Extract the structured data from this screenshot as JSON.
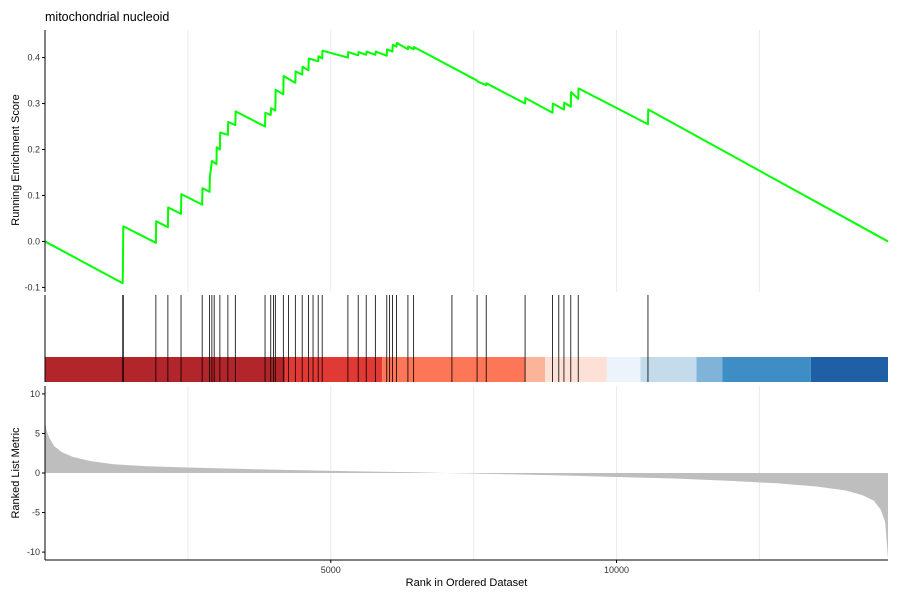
{
  "chart_data": {
    "type": "line",
    "title": "mitochondrial nucleoid",
    "xlabel": "Rank in Ordered Dataset",
    "xlim": [
      0,
      14750
    ],
    "x_ticks": [
      5000,
      10000
    ],
    "x_grid": [
      2500,
      5000,
      7500,
      10000,
      12500
    ],
    "grid": true,
    "running_score": {
      "ylabel": "Running Enrichment Score",
      "ylim": [
        -0.11,
        0.46
      ],
      "y_ticks": [
        -0.1,
        0.0,
        0.1,
        0.2,
        0.3,
        0.4
      ],
      "color": "#00ff00",
      "points": [
        [
          0,
          0.0
        ],
        [
          1360,
          -0.091
        ],
        [
          1365,
          -0.03
        ],
        [
          1370,
          0.033
        ],
        [
          1940,
          -0.003
        ],
        [
          1945,
          0.044
        ],
        [
          2150,
          0.031
        ],
        [
          2155,
          0.074
        ],
        [
          2380,
          0.06
        ],
        [
          2385,
          0.103
        ],
        [
          2750,
          0.08
        ],
        [
          2755,
          0.116
        ],
        [
          2880,
          0.108
        ],
        [
          2885,
          0.14
        ],
        [
          2920,
          0.175
        ],
        [
          3000,
          0.168
        ],
        [
          3005,
          0.205
        ],
        [
          3060,
          0.2
        ],
        [
          3065,
          0.237
        ],
        [
          3200,
          0.232
        ],
        [
          3205,
          0.26
        ],
        [
          3330,
          0.253
        ],
        [
          3335,
          0.283
        ],
        [
          3850,
          0.25
        ],
        [
          3855,
          0.28
        ],
        [
          3950,
          0.275
        ],
        [
          3955,
          0.29
        ],
        [
          4030,
          0.285
        ],
        [
          4035,
          0.33
        ],
        [
          4170,
          0.32
        ],
        [
          4175,
          0.36
        ],
        [
          4380,
          0.345
        ],
        [
          4385,
          0.37
        ],
        [
          4500,
          0.363
        ],
        [
          4505,
          0.38
        ],
        [
          4610,
          0.372
        ],
        [
          4615,
          0.398
        ],
        [
          4780,
          0.392
        ],
        [
          4785,
          0.403
        ],
        [
          4850,
          0.398
        ],
        [
          4855,
          0.415
        ],
        [
          5300,
          0.4
        ],
        [
          5305,
          0.412
        ],
        [
          5480,
          0.405
        ],
        [
          5485,
          0.412
        ],
        [
          5620,
          0.406
        ],
        [
          5625,
          0.413
        ],
        [
          5780,
          0.406
        ],
        [
          5785,
          0.413
        ],
        [
          5980,
          0.404
        ],
        [
          5985,
          0.418
        ],
        [
          6080,
          0.413
        ],
        [
          6085,
          0.428
        ],
        [
          6150,
          0.424
        ],
        [
          6155,
          0.432
        ],
        [
          6350,
          0.418
        ],
        [
          6355,
          0.424
        ],
        [
          6450,
          0.418
        ],
        [
          6455,
          0.423
        ],
        [
          7560,
          0.35
        ],
        [
          7565,
          0.348
        ],
        [
          7720,
          0.34
        ],
        [
          7725,
          0.344
        ],
        [
          8400,
          0.3
        ],
        [
          8405,
          0.312
        ],
        [
          8880,
          0.28
        ],
        [
          8885,
          0.3
        ],
        [
          9080,
          0.287
        ],
        [
          9085,
          0.302
        ],
        [
          9200,
          0.293
        ],
        [
          9205,
          0.325
        ],
        [
          9330,
          0.31
        ],
        [
          9335,
          0.333
        ],
        [
          10550,
          0.255
        ],
        [
          10555,
          0.287
        ],
        [
          14750,
          0.0
        ]
      ]
    },
    "gene_hits": [
      1360,
      1370,
      1940,
      2150,
      2380,
      2750,
      2880,
      2920,
      2960,
      3060,
      3200,
      3330,
      3850,
      3950,
      4000,
      4030,
      4170,
      4260,
      4380,
      4500,
      4610,
      4690,
      4780,
      4850,
      5300,
      5480,
      5620,
      5780,
      5980,
      6030,
      6080,
      6150,
      6350,
      6450,
      7120,
      7560,
      7720,
      8400,
      8880,
      8990,
      9080,
      9200,
      9330,
      10550
    ],
    "rank_heatmap": [
      {
        "start": 0,
        "end": 4200,
        "color": "#b2252b"
      },
      {
        "start": 4200,
        "end": 5900,
        "color": "#e13a34"
      },
      {
        "start": 5900,
        "end": 8400,
        "color": "#fc7657"
      },
      {
        "start": 8400,
        "end": 8750,
        "color": "#fbb39a"
      },
      {
        "start": 8750,
        "end": 9830,
        "color": "#fde1d6"
      },
      {
        "start": 9830,
        "end": 10420,
        "color": "#edf3fa"
      },
      {
        "start": 10420,
        "end": 11400,
        "color": "#c3dbea"
      },
      {
        "start": 11400,
        "end": 11850,
        "color": "#7fb4d8"
      },
      {
        "start": 11850,
        "end": 13400,
        "color": "#3f8dc5"
      },
      {
        "start": 13400,
        "end": 14750,
        "color": "#1f5fa5"
      }
    ],
    "ranked_metric": {
      "ylabel": "Ranked List Metric",
      "ylim": [
        -11,
        11
      ],
      "y_ticks": [
        -10,
        -5,
        0,
        5,
        10
      ],
      "fill_color": "#bebebe",
      "points": [
        [
          0,
          6.5
        ],
        [
          30,
          5.3
        ],
        [
          80,
          4.4
        ],
        [
          160,
          3.4
        ],
        [
          300,
          2.6
        ],
        [
          500,
          2.0
        ],
        [
          800,
          1.5
        ],
        [
          1200,
          1.1
        ],
        [
          1800,
          0.85
        ],
        [
          2500,
          0.7
        ],
        [
          3500,
          0.5
        ],
        [
          4500,
          0.35
        ],
        [
          5500,
          0.2
        ],
        [
          6500,
          0.1
        ],
        [
          7000,
          0.0
        ],
        [
          8000,
          -0.15
        ],
        [
          9000,
          -0.3
        ],
        [
          10000,
          -0.5
        ],
        [
          11000,
          -0.7
        ],
        [
          12000,
          -1.0
        ],
        [
          12800,
          -1.3
        ],
        [
          13500,
          -1.7
        ],
        [
          14000,
          -2.2
        ],
        [
          14300,
          -2.8
        ],
        [
          14500,
          -3.5
        ],
        [
          14620,
          -4.6
        ],
        [
          14700,
          -6.2
        ],
        [
          14750,
          -10.8
        ]
      ]
    }
  }
}
